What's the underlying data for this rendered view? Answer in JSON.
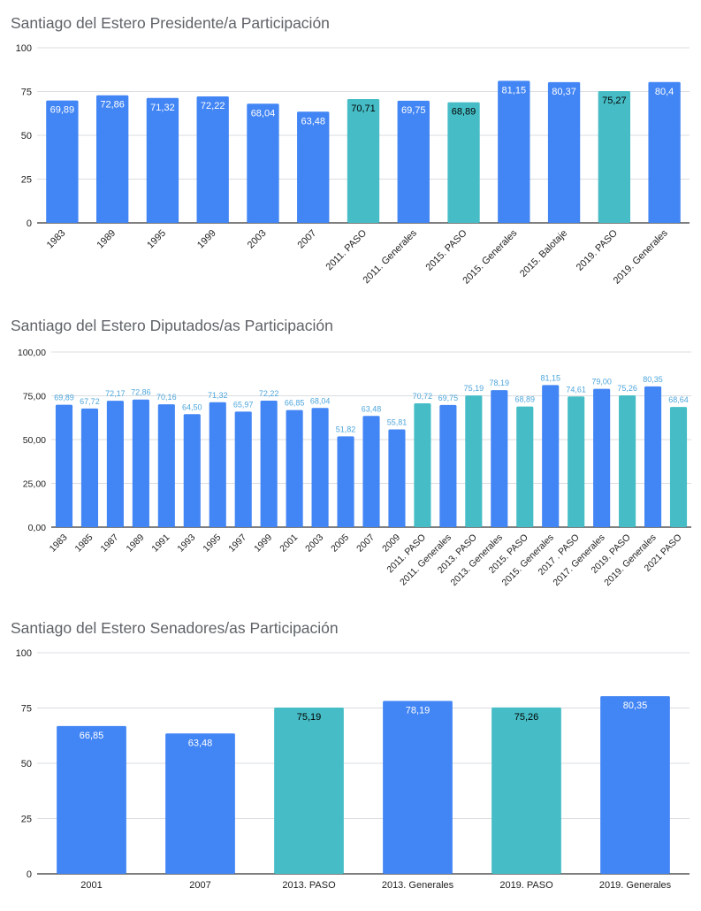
{
  "colors": {
    "blue": "#4285f4",
    "teal": "#46bdc6",
    "grid": "#dadce0",
    "axis": "#333333",
    "label_light": "#ffffff",
    "label_dark": "#000000",
    "label_outside": "#4ea6dc",
    "tick_text": "#222222",
    "title_text": "#5f6368"
  },
  "chart_data": [
    {
      "type": "bar",
      "title": "Santiago del Estero Presidente/a Participación",
      "categories": [
        "1983",
        "1989",
        "1995",
        "1999",
        "2003",
        "2007",
        "2011. PASO",
        "2011. Generales",
        "2015. PASO",
        "2015. Generales",
        "2015. Balotaje",
        "2019. PASO",
        "2019. Generales"
      ],
      "values": [
        69.89,
        72.86,
        71.32,
        72.22,
        68.04,
        63.48,
        70.71,
        69.75,
        68.89,
        81.15,
        80.37,
        75.27,
        80.4
      ],
      "value_labels": [
        "69,89",
        "72,86",
        "71,32",
        "72,22",
        "68,04",
        "63,48",
        "70,71",
        "69,75",
        "68,89",
        "81,15",
        "80,37",
        "75,27",
        "80,4"
      ],
      "bar_colors": [
        "blue",
        "blue",
        "blue",
        "blue",
        "blue",
        "blue",
        "teal",
        "blue",
        "teal",
        "blue",
        "blue",
        "teal",
        "blue"
      ],
      "ylim": [
        0,
        100
      ],
      "yticks": [
        0,
        25,
        50,
        75,
        100
      ],
      "ytick_labels": [
        "0",
        "25",
        "50",
        "75",
        "100"
      ],
      "grid": true,
      "legend": "none",
      "xlabels_rotated": true,
      "label_position": "inside"
    },
    {
      "type": "bar",
      "title": "Santiago del Estero Diputados/as Participación",
      "categories": [
        "1983",
        "1985",
        "1987",
        "1989",
        "1991",
        "1993",
        "1995",
        "1997",
        "1999",
        "2001",
        "2003",
        "2005",
        "2007",
        "2009",
        "2011. PASO",
        "2011. Generales",
        "2013. PASO",
        "2013. Generales",
        "2015. PASO",
        "2015. Generales",
        "2017 . PASO",
        "2017. Generales",
        "2019. PASO",
        "2019. Generales",
        "2021 PASO"
      ],
      "values": [
        69.89,
        67.72,
        72.17,
        72.86,
        70.16,
        64.5,
        71.32,
        65.97,
        72.22,
        66.85,
        68.04,
        51.82,
        63.48,
        55.81,
        70.72,
        69.75,
        75.19,
        78.19,
        68.89,
        81.15,
        74.61,
        79.0,
        75.26,
        80.35,
        68.64
      ],
      "value_labels": [
        "69,89",
        "67,72",
        "72,17",
        "72,86",
        "70,16",
        "64,50",
        "71,32",
        "65,97",
        "72,22",
        "66,85",
        "68,04",
        "51,82",
        "63,48",
        "55,81",
        "70,72",
        "69,75",
        "75,19",
        "78,19",
        "68,89",
        "81,15",
        "74,61",
        "79,00",
        "75,26",
        "80,35",
        "68,64"
      ],
      "bar_colors": [
        "blue",
        "blue",
        "blue",
        "blue",
        "blue",
        "blue",
        "blue",
        "blue",
        "blue",
        "blue",
        "blue",
        "blue",
        "blue",
        "blue",
        "teal",
        "blue",
        "teal",
        "blue",
        "teal",
        "blue",
        "teal",
        "blue",
        "teal",
        "blue",
        "teal"
      ],
      "ylim": [
        0,
        100
      ],
      "yticks": [
        0,
        25,
        50,
        75,
        100
      ],
      "ytick_labels": [
        "0,00",
        "25,00",
        "50,00",
        "75,00",
        "100,00"
      ],
      "grid": true,
      "legend": "none",
      "xlabels_rotated": true,
      "label_position": "above"
    },
    {
      "type": "bar",
      "title": "Santiago del Estero Senadores/as Participación",
      "categories": [
        "2001",
        "2007",
        "2013. PASO",
        "2013. Generales",
        "2019. PASO",
        "2019. Generales"
      ],
      "values": [
        66.85,
        63.48,
        75.19,
        78.19,
        75.26,
        80.35
      ],
      "value_labels": [
        "66,85",
        "63,48",
        "75,19",
        "78,19",
        "75,26",
        "80,35"
      ],
      "bar_colors": [
        "blue",
        "blue",
        "teal",
        "blue",
        "teal",
        "blue"
      ],
      "ylim": [
        0,
        100
      ],
      "yticks": [
        0,
        25,
        50,
        75,
        100
      ],
      "ytick_labels": [
        "0",
        "25",
        "50",
        "75",
        "100"
      ],
      "grid": true,
      "legend": "none",
      "xlabels_rotated": false,
      "label_position": "inside"
    }
  ]
}
